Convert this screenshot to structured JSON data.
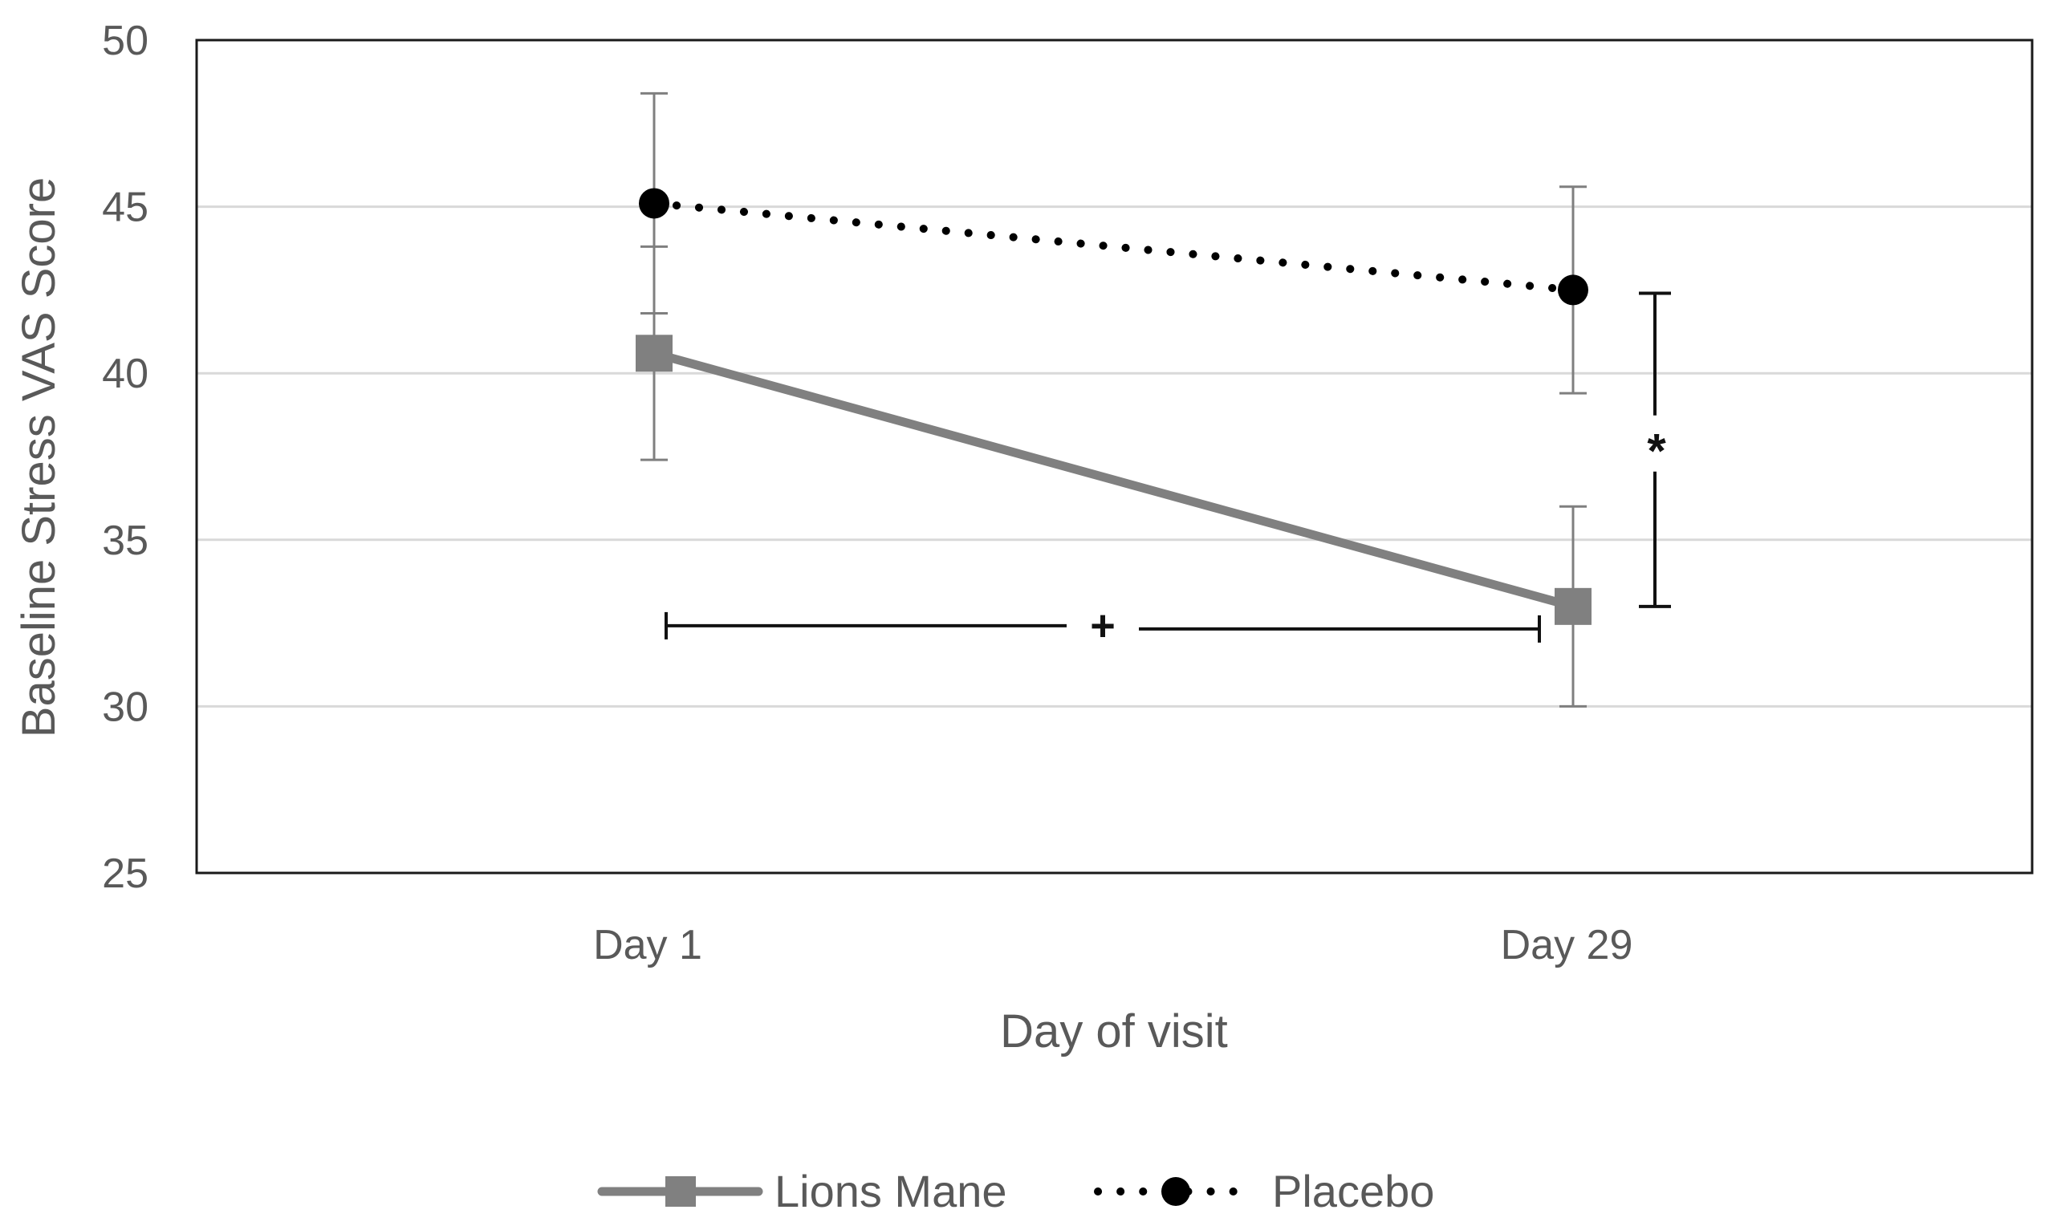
{
  "chart_data": {
    "type": "line",
    "title": "",
    "xlabel": "Day of visit",
    "ylabel": "Baseline Stress VAS Score",
    "categories": [
      "Day 1",
      "Day 29"
    ],
    "y_ticks": [
      "25",
      "30",
      "35",
      "40",
      "45",
      "50"
    ],
    "ylim": [
      25,
      50
    ],
    "grid": true,
    "legend_position": "bottom",
    "series": [
      {
        "name": "Lions Mane",
        "values": [
          40.6,
          33.0
        ],
        "error_upper": [
          43.8,
          36.0
        ],
        "error_lower": [
          37.4,
          30.0
        ],
        "marker": "square",
        "line_style": "solid",
        "color": "#808080"
      },
      {
        "name": "Placebo",
        "values": [
          45.1,
          42.5
        ],
        "error_upper": [
          48.4,
          45.6
        ],
        "error_lower": [
          41.8,
          39.4
        ],
        "marker": "circle",
        "line_style": "dotted",
        "color": "#000000"
      }
    ],
    "annotations": [
      {
        "name": "time-difference-bracket",
        "label": "+",
        "orientation": "horizontal",
        "from_category": "Day 1",
        "to_category": "Day 29",
        "at_value": 32.3
      },
      {
        "name": "group-difference-bracket",
        "label": "*",
        "orientation": "vertical",
        "at_category": "Day 29",
        "from_value": 33.0,
        "to_value": 42.4
      }
    ]
  }
}
